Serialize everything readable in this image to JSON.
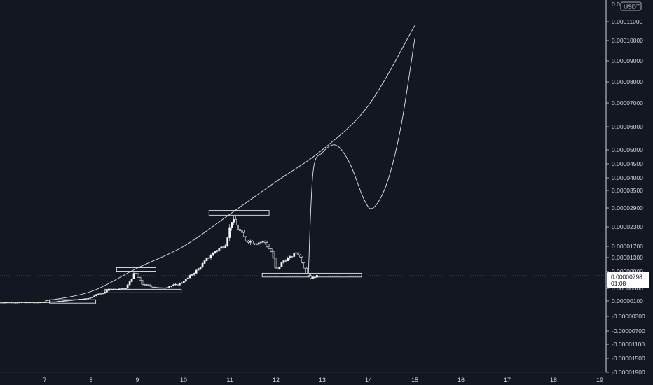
{
  "chart_data": {
    "type": "candlestick",
    "currency": "USDT",
    "x_ticks": [
      "7",
      "8",
      "9",
      "10",
      "11",
      "12",
      "13",
      "14",
      "15",
      "16",
      "17",
      "18",
      "19"
    ],
    "y_ticks": [
      "0.00011000",
      "0.00010000",
      "0.00009000",
      "0.00008000",
      "0.00007000",
      "0.00006000",
      "0.00005000",
      "0.00004500",
      "0.00004000",
      "0.00003500",
      "0.00002900",
      "0.00002300",
      "0.00001700",
      "0.00001300",
      "0.00000900",
      "0.00000500",
      "0.00000100",
      "-0.00000300",
      "-0.00000700",
      "-0.00001100",
      "-0.00001500",
      "-0.00001900"
    ],
    "y_top_partial": "0.0",
    "last_price": "0.00000798",
    "countdown": "01:08",
    "price_series": [
      {
        "x": 6.0,
        "y": 6e-07
      },
      {
        "x": 6.9,
        "y": 6e-07
      },
      {
        "x": 7.2,
        "y": 8e-07
      },
      {
        "x": 7.5,
        "y": 1.2e-06
      },
      {
        "x": 7.8,
        "y": 1.6e-06
      },
      {
        "x": 8.0,
        "y": 2e-06
      },
      {
        "x": 8.1,
        "y": 3e-06
      },
      {
        "x": 8.25,
        "y": 3.5e-06
      },
      {
        "x": 8.4,
        "y": 4.8e-06
      },
      {
        "x": 8.55,
        "y": 4.6e-06
      },
      {
        "x": 8.75,
        "y": 5e-06
      },
      {
        "x": 8.95,
        "y": 8.8e-06
      },
      {
        "x": 9.1,
        "y": 6e-06
      },
      {
        "x": 9.3,
        "y": 5.5e-06
      },
      {
        "x": 9.5,
        "y": 5e-06
      },
      {
        "x": 9.7,
        "y": 5.5e-06
      },
      {
        "x": 9.9,
        "y": 6e-06
      },
      {
        "x": 10.1,
        "y": 7.5e-06
      },
      {
        "x": 10.3,
        "y": 9.5e-06
      },
      {
        "x": 10.5,
        "y": 1.25e-05
      },
      {
        "x": 10.7,
        "y": 1.55e-05
      },
      {
        "x": 10.9,
        "y": 1.75e-05
      },
      {
        "x": 11.05,
        "y": 2.55e-05
      },
      {
        "x": 11.15,
        "y": 2.3e-05
      },
      {
        "x": 11.35,
        "y": 1.9e-05
      },
      {
        "x": 11.55,
        "y": 1.8e-05
      },
      {
        "x": 11.75,
        "y": 1.85e-05
      },
      {
        "x": 11.9,
        "y": 1.5e-05
      },
      {
        "x": 12.0,
        "y": 9e-06
      },
      {
        "x": 12.15,
        "y": 1.2e-05
      },
      {
        "x": 12.3,
        "y": 1.3e-05
      },
      {
        "x": 12.45,
        "y": 1.5e-05
      },
      {
        "x": 12.55,
        "y": 1.25e-05
      },
      {
        "x": 12.65,
        "y": 9e-06
      },
      {
        "x": 12.75,
        "y": 7.5e-06
      },
      {
        "x": 12.9,
        "y": 8e-06
      }
    ],
    "projection_path": [
      {
        "x": 12.7,
        "y": 8.5e-06
      },
      {
        "x": 12.8,
        "y": 4.2e-05
      },
      {
        "x": 13.0,
        "y": 4.9e-05
      },
      {
        "x": 13.3,
        "y": 5.2e-05
      },
      {
        "x": 13.6,
        "y": 4.5e-05
      },
      {
        "x": 13.9,
        "y": 3.2e-05
      },
      {
        "x": 14.1,
        "y": 2.9e-05
      },
      {
        "x": 14.4,
        "y": 3.8e-05
      },
      {
        "x": 14.7,
        "y": 6e-05
      },
      {
        "x": 15.0,
        "y": 0.000101
      }
    ],
    "trend_curve": [
      {
        "x": 7.0,
        "y": 1e-06
      },
      {
        "x": 8.0,
        "y": 4e-06
      },
      {
        "x": 9.0,
        "y": 1e-05
      },
      {
        "x": 10.0,
        "y": 1.7e-05
      },
      {
        "x": 11.0,
        "y": 2.7e-05
      },
      {
        "x": 12.0,
        "y": 3.85e-05
      },
      {
        "x": 13.0,
        "y": 5e-05
      },
      {
        "x": 14.0,
        "y": 6.9e-05
      },
      {
        "x": 15.0,
        "y": 0.000108
      }
    ],
    "boxes": [
      {
        "x0": 7.1,
        "x1": 8.1,
        "y0": 9e-07,
        "y1": 1.4e-06
      },
      {
        "x0": 8.55,
        "x1": 9.4,
        "y0": 9.3e-06,
        "y1": 1.01e-05
      },
      {
        "x0": 8.3,
        "x1": 9.95,
        "y0": 3.8e-06,
        "y1": 4.7e-06
      },
      {
        "x0": 10.55,
        "x1": 11.85,
        "y0": 2.67e-05,
        "y1": 2.82e-05
      },
      {
        "x0": 11.7,
        "x1": 13.85,
        "y0": 7.7e-06,
        "y1": 8.6e-06
      }
    ]
  }
}
